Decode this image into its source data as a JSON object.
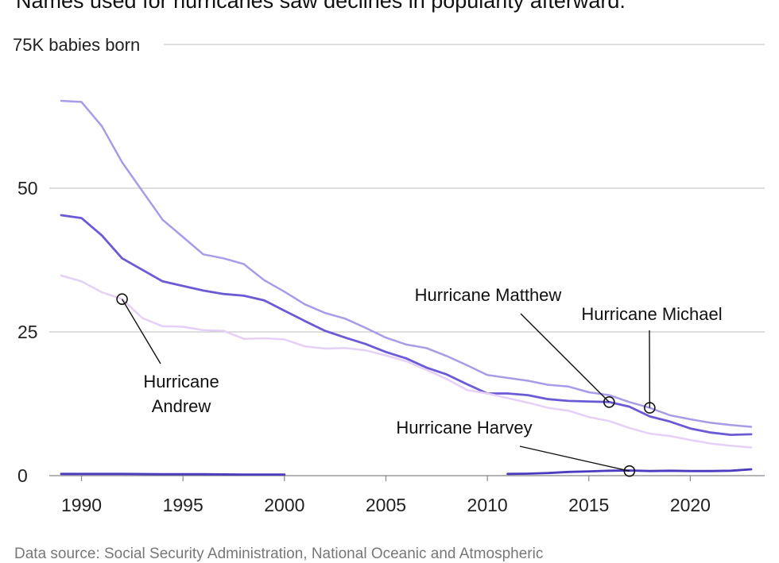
{
  "subtitle": "Names used for hurricanes saw declines in popularity afterward.",
  "source": "Data source: Social Security Administration, National Oceanic and Atmospheric",
  "chart_data": {
    "type": "line",
    "title": "Names used for hurricanes saw declines in popularity afterward.",
    "ylabel": "K babies born",
    "y_top_label": "75K babies born",
    "xlabel": "",
    "xlim": [
      1989,
      2023
    ],
    "ylim": [
      0,
      75
    ],
    "x_ticks": [
      1990,
      1995,
      2000,
      2005,
      2010,
      2015,
      2020
    ],
    "y_ticks": [
      0,
      25,
      50
    ],
    "series": [
      {
        "name": "Matthew",
        "color": "#a89be8",
        "stroke": 2.5,
        "points": [
          [
            1989,
            65.2
          ],
          [
            1990,
            65.0
          ],
          [
            1991,
            60.8
          ],
          [
            1992,
            54.5
          ],
          [
            1993,
            49.5
          ],
          [
            1994,
            44.5
          ],
          [
            1995,
            41.5
          ],
          [
            1996,
            38.5
          ],
          [
            1997,
            37.8
          ],
          [
            1998,
            36.8
          ],
          [
            1999,
            34.0
          ],
          [
            2000,
            32.0
          ],
          [
            2001,
            29.8
          ],
          [
            2002,
            28.3
          ],
          [
            2003,
            27.3
          ],
          [
            2004,
            25.7
          ],
          [
            2005,
            24.0
          ],
          [
            2006,
            22.8
          ],
          [
            2007,
            22.2
          ],
          [
            2008,
            20.8
          ],
          [
            2009,
            19.2
          ],
          [
            2010,
            17.5
          ],
          [
            2011,
            17.0
          ],
          [
            2012,
            16.5
          ],
          [
            2013,
            15.8
          ],
          [
            2014,
            15.5
          ],
          [
            2015,
            14.5
          ],
          [
            2016,
            14.0
          ],
          [
            2017,
            12.8
          ],
          [
            2018,
            11.8
          ],
          [
            2019,
            10.5
          ],
          [
            2020,
            9.8
          ],
          [
            2021,
            9.2
          ],
          [
            2022,
            8.8
          ],
          [
            2023,
            8.5
          ]
        ]
      },
      {
        "name": "Michael",
        "color": "#6b5ad6",
        "stroke": 2.8,
        "points": [
          [
            1989,
            45.3
          ],
          [
            1990,
            44.8
          ],
          [
            1991,
            41.8
          ],
          [
            1992,
            37.8
          ],
          [
            1993,
            35.8
          ],
          [
            1994,
            33.8
          ],
          [
            1995,
            33.0
          ],
          [
            1996,
            32.2
          ],
          [
            1997,
            31.6
          ],
          [
            1998,
            31.3
          ],
          [
            1999,
            30.5
          ],
          [
            2000,
            28.7
          ],
          [
            2001,
            26.9
          ],
          [
            2002,
            25.2
          ],
          [
            2003,
            24.0
          ],
          [
            2004,
            22.9
          ],
          [
            2005,
            21.5
          ],
          [
            2006,
            20.4
          ],
          [
            2007,
            18.8
          ],
          [
            2008,
            17.6
          ],
          [
            2009,
            15.9
          ],
          [
            2010,
            14.3
          ],
          [
            2011,
            14.3
          ],
          [
            2012,
            14.0
          ],
          [
            2013,
            13.3
          ],
          [
            2014,
            13.0
          ],
          [
            2015,
            12.9
          ],
          [
            2016,
            12.8
          ],
          [
            2017,
            12.0
          ],
          [
            2018,
            10.3
          ],
          [
            2019,
            9.4
          ],
          [
            2020,
            8.2
          ],
          [
            2021,
            7.5
          ],
          [
            2022,
            7.1
          ],
          [
            2023,
            7.2
          ]
        ]
      },
      {
        "name": "Andrew",
        "color": "#e5d0f7",
        "stroke": 2.5,
        "points": [
          [
            1989,
            34.8
          ],
          [
            1990,
            33.8
          ],
          [
            1991,
            31.9
          ],
          [
            1992,
            30.7
          ],
          [
            1993,
            27.4
          ],
          [
            1994,
            26.0
          ],
          [
            1995,
            25.9
          ],
          [
            1996,
            25.3
          ],
          [
            1997,
            25.2
          ],
          [
            1998,
            23.8
          ],
          [
            1999,
            23.9
          ],
          [
            2000,
            23.7
          ],
          [
            2001,
            22.5
          ],
          [
            2002,
            22.1
          ],
          [
            2003,
            22.2
          ],
          [
            2004,
            21.8
          ],
          [
            2005,
            20.9
          ],
          [
            2006,
            19.9
          ],
          [
            2007,
            18.4
          ],
          [
            2008,
            16.8
          ],
          [
            2009,
            14.9
          ],
          [
            2010,
            14.3
          ],
          [
            2011,
            13.5
          ],
          [
            2012,
            12.7
          ],
          [
            2013,
            11.8
          ],
          [
            2014,
            11.3
          ],
          [
            2015,
            10.2
          ],
          [
            2016,
            9.5
          ],
          [
            2017,
            8.3
          ],
          [
            2018,
            7.3
          ],
          [
            2019,
            6.9
          ],
          [
            2020,
            6.2
          ],
          [
            2021,
            5.6
          ],
          [
            2022,
            5.2
          ],
          [
            2023,
            4.9
          ]
        ]
      },
      {
        "name": "Harvey",
        "color": "#4a3bbf",
        "stroke": 2.8,
        "segments": [
          [
            [
              1989,
              0.3
            ],
            [
              1990,
              0.3
            ],
            [
              1992,
              0.3
            ],
            [
              1994,
              0.25
            ],
            [
              1996,
              0.25
            ],
            [
              1998,
              0.2
            ],
            [
              2000,
              0.2
            ]
          ],
          [
            [
              2011,
              0.3
            ],
            [
              2012,
              0.35
            ],
            [
              2013,
              0.45
            ],
            [
              2014,
              0.65
            ],
            [
              2015,
              0.75
            ],
            [
              2016,
              0.85
            ],
            [
              2017,
              0.9
            ],
            [
              2018,
              0.8
            ],
            [
              2019,
              0.85
            ],
            [
              2020,
              0.8
            ],
            [
              2021,
              0.8
            ],
            [
              2022,
              0.85
            ],
            [
              2023,
              1.1
            ]
          ]
        ]
      }
    ],
    "annotations": [
      {
        "id": "andrew",
        "lines": [
          "Hurricane",
          "Andrew"
        ],
        "point": [
          1992,
          30.7
        ]
      },
      {
        "id": "matthew",
        "lines": [
          "Hurricane Matthew"
        ],
        "point": [
          2016,
          12.8
        ]
      },
      {
        "id": "michael",
        "lines": [
          "Hurricane Michael"
        ],
        "point": [
          2018,
          11.8
        ]
      },
      {
        "id": "harvey",
        "lines": [
          "Hurricane Harvey"
        ],
        "point": [
          2017,
          0.8
        ]
      }
    ]
  }
}
